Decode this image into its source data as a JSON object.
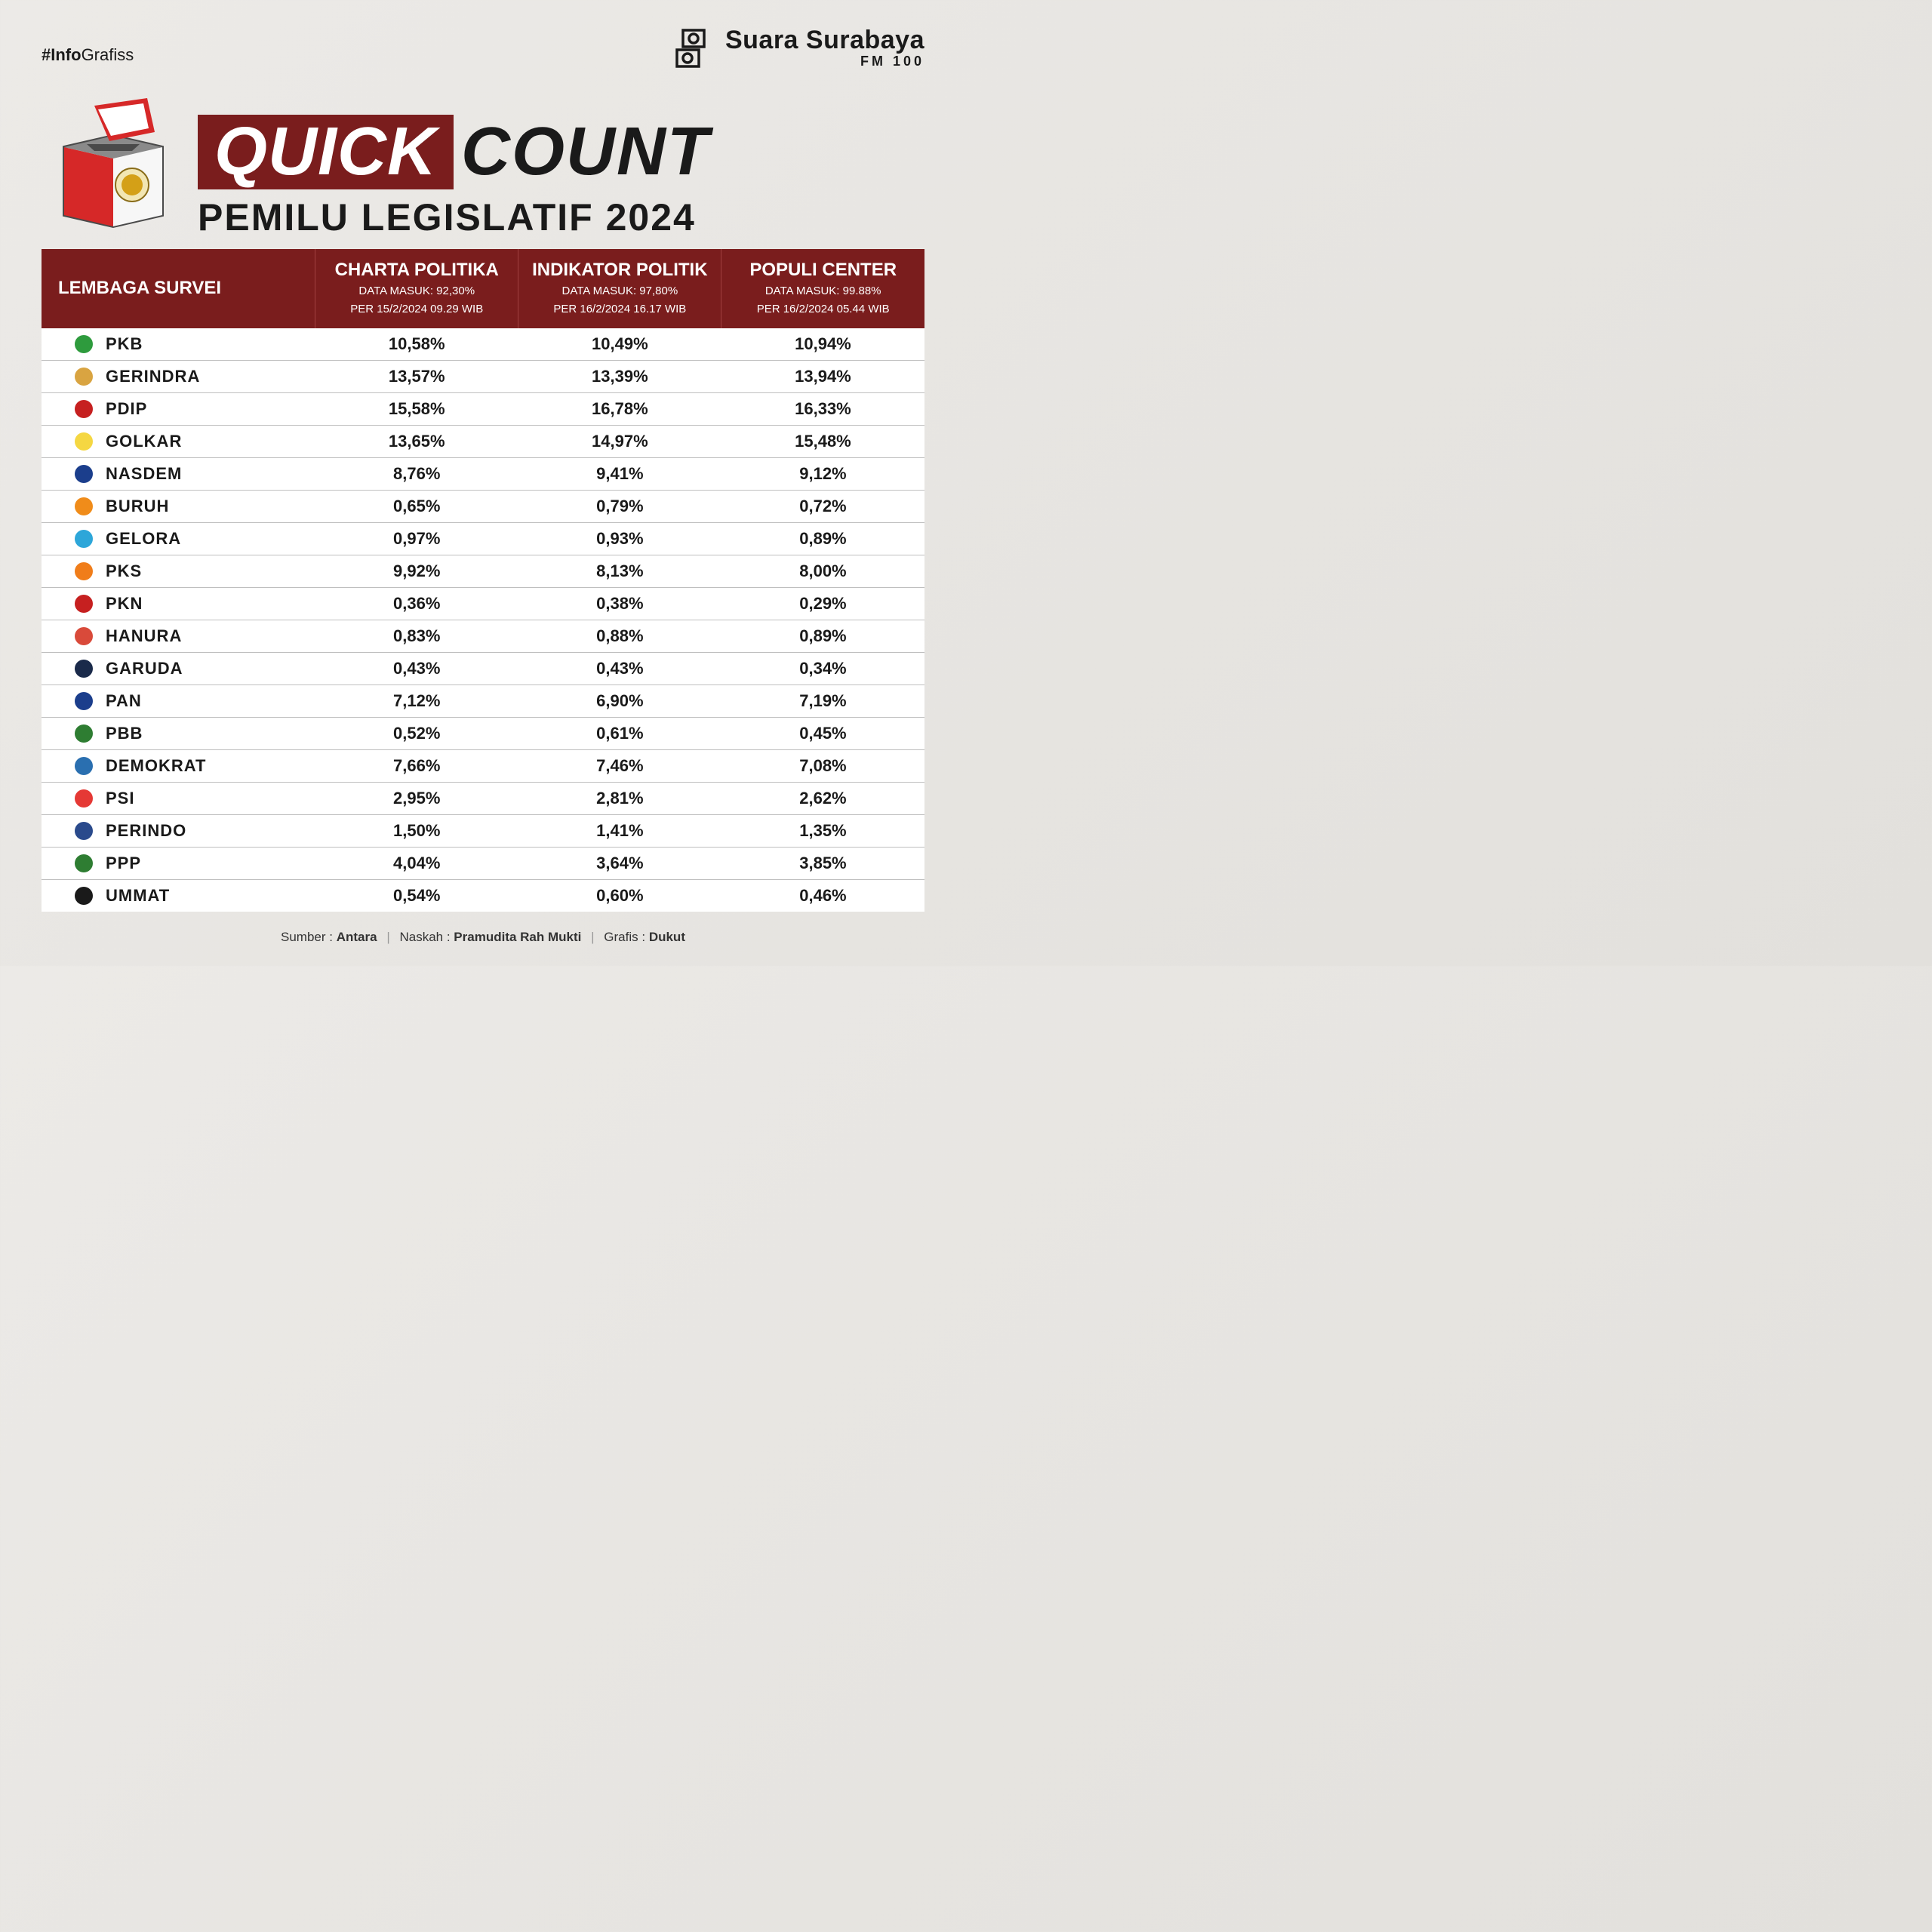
{
  "hashtag_prefix": "#Info",
  "hashtag_suffix": "Grafiss",
  "brand_name": "Suara Surabaya",
  "brand_fm": "FM 100",
  "title_quick": "QUICK",
  "title_count": "COUNT",
  "subtitle": "PEMILU LEGISLATIF 2024",
  "columns": {
    "label": "LEMBAGA SURVEI",
    "agencies": [
      {
        "name": "CHARTA POLITIKA",
        "data_masuk": "DATA MASUK: 92,30%",
        "per": "PER 15/2/2024 09.29 WIB"
      },
      {
        "name": "INDIKATOR POLITIK",
        "data_masuk": "DATA MASUK: 97,80%",
        "per": "PER 16/2/2024 16.17 WIB"
      },
      {
        "name": "POPULI CENTER",
        "data_masuk": "DATA MASUK: 99.88%",
        "per": "PER 16/2/2024 05.44 WIB"
      }
    ]
  },
  "rows": [
    {
      "party": "PKB",
      "icon_bg": "#2e9b3d",
      "values": [
        "10,58%",
        "10,49%",
        "10,94%"
      ]
    },
    {
      "party": "GERINDRA",
      "icon_bg": "#d9a441",
      "values": [
        "13,57%",
        "13,39%",
        "13,94%"
      ]
    },
    {
      "party": "PDIP",
      "icon_bg": "#c62020",
      "values": [
        "15,58%",
        "16,78%",
        "16,33%"
      ]
    },
    {
      "party": "GOLKAR",
      "icon_bg": "#f5d742",
      "values": [
        "13,65%",
        "14,97%",
        "15,48%"
      ]
    },
    {
      "party": "NASDEM",
      "icon_bg": "#1b3e8c",
      "values": [
        "8,76%",
        "9,41%",
        "9,12%"
      ]
    },
    {
      "party": "BURUH",
      "icon_bg": "#f08c1a",
      "values": [
        "0,65%",
        "0,79%",
        "0,72%"
      ]
    },
    {
      "party": "GELORA",
      "icon_bg": "#2da6d9",
      "values": [
        "0,97%",
        "0,93%",
        "0,89%"
      ]
    },
    {
      "party": "PKS",
      "icon_bg": "#f07d1a",
      "values": [
        "9,92%",
        "8,13%",
        "8,00%"
      ]
    },
    {
      "party": "PKN",
      "icon_bg": "#c62020",
      "values": [
        "0,36%",
        "0,38%",
        "0,29%"
      ]
    },
    {
      "party": "HANURA",
      "icon_bg": "#d94a3a",
      "values": [
        "0,83%",
        "0,88%",
        "0,89%"
      ]
    },
    {
      "party": "GARUDA",
      "icon_bg": "#1a2a4a",
      "values": [
        "0,43%",
        "0,43%",
        "0,34%"
      ]
    },
    {
      "party": "PAN",
      "icon_bg": "#1b3e8c",
      "values": [
        "7,12%",
        "6,90%",
        "7,19%"
      ]
    },
    {
      "party": "PBB",
      "icon_bg": "#2e7d32",
      "values": [
        "0,52%",
        "0,61%",
        "0,45%"
      ]
    },
    {
      "party": "DEMOKRAT",
      "icon_bg": "#2a6fb0",
      "values": [
        "7,66%",
        "7,46%",
        "7,08%"
      ]
    },
    {
      "party": "PSI",
      "icon_bg": "#e53935",
      "values": [
        "2,95%",
        "2,81%",
        "2,62%"
      ]
    },
    {
      "party": "PERINDO",
      "icon_bg": "#2a4a8c",
      "values": [
        "1,50%",
        "1,41%",
        "1,35%"
      ]
    },
    {
      "party": "PPP",
      "icon_bg": "#2e7d32",
      "values": [
        "4,04%",
        "3,64%",
        "3,85%"
      ]
    },
    {
      "party": "UMMAT",
      "icon_bg": "#1a1a1a",
      "values": [
        "0,54%",
        "0,60%",
        "0,46%"
      ]
    }
  ],
  "footer": {
    "sumber_label": "Sumber :",
    "sumber_value": "Antara",
    "naskah_label": "Naskah :",
    "naskah_value": "Pramudita Rah Mukti",
    "grafis_label": "Grafis :",
    "grafis_value": "Dukut"
  },
  "colors": {
    "primary": "#7a1d1d",
    "text": "#1a1a1a",
    "row_border": "#bfbfbf"
  }
}
